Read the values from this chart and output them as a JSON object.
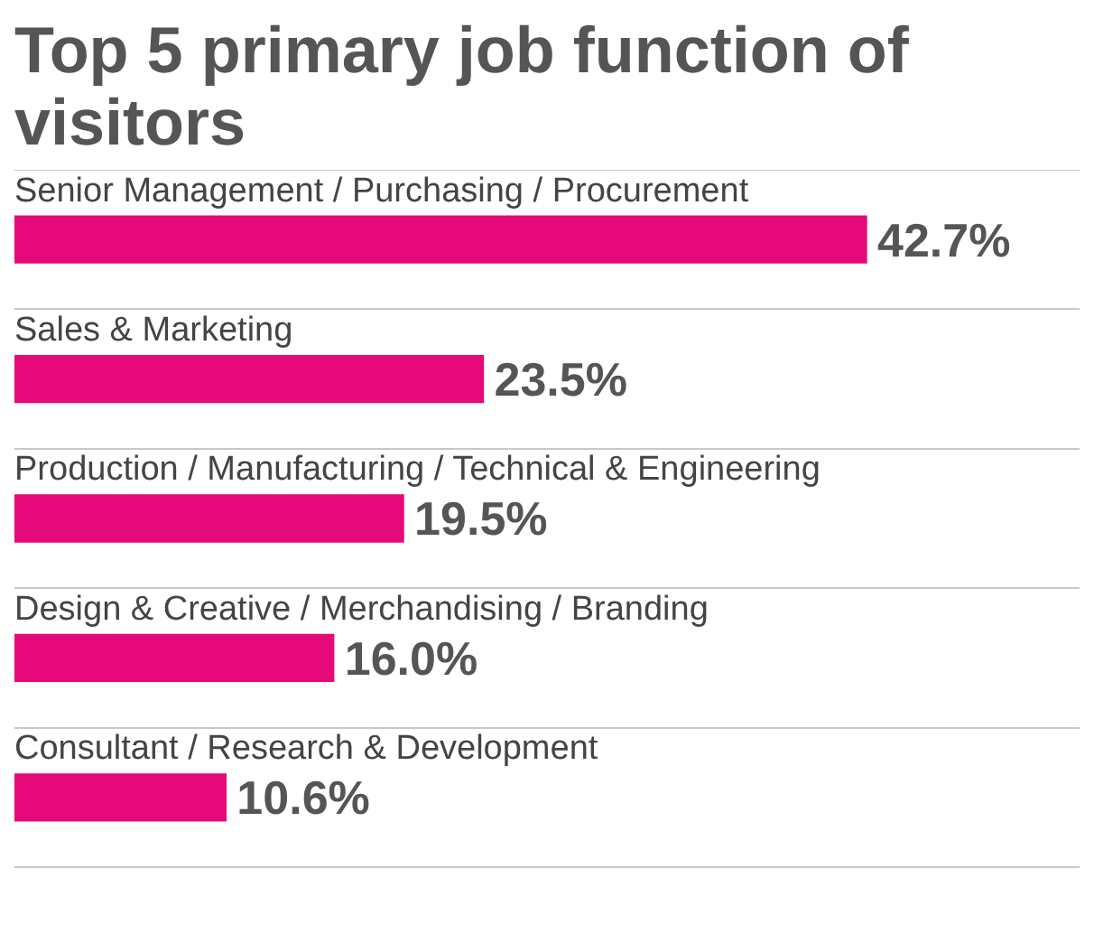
{
  "chart_data": {
    "type": "bar",
    "orientation": "horizontal",
    "title": "Top 5 primary job function of visitors",
    "categories": [
      "Senior Management / Purchasing / Procurement",
      "Sales & Marketing",
      "Production / Manufacturing / Technical & Engineering",
      "Design & Creative / Merchandising / Branding",
      "Consultant / Research & Development"
    ],
    "values": [
      42.7,
      23.5,
      19.5,
      16.0,
      10.6
    ],
    "value_labels": [
      "42.7%",
      "23.5%",
      "19.5%",
      "16.0%",
      "10.6%"
    ],
    "color": "#e5097a",
    "grid": "y"
  }
}
